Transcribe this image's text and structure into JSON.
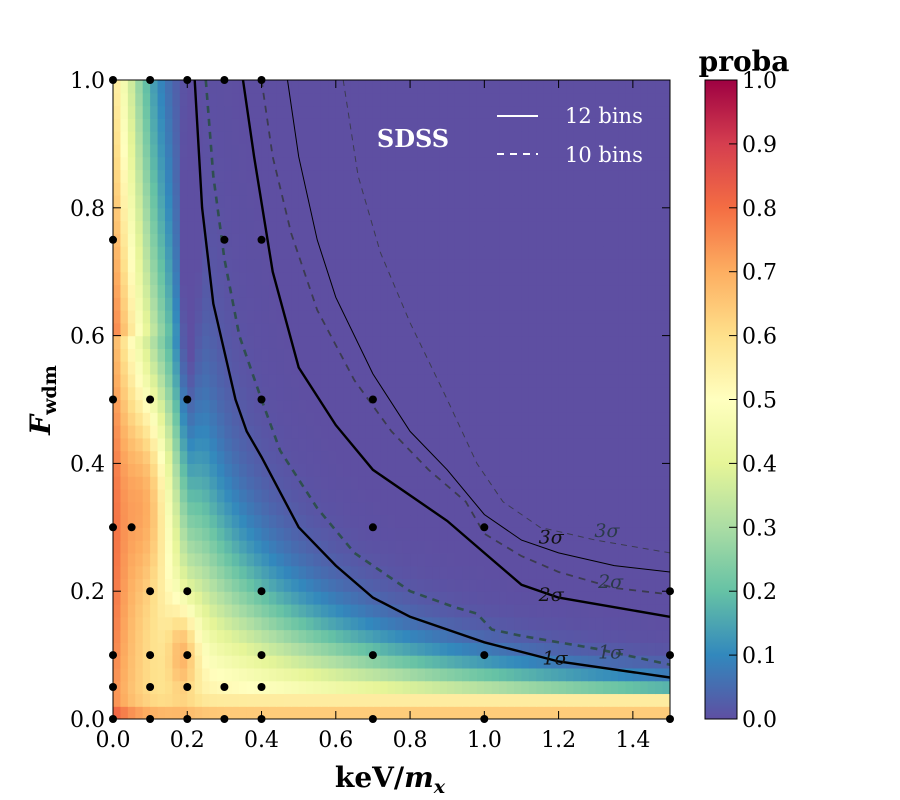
{
  "chart_data": {
    "type": "heatmap",
    "title": "",
    "xlabel": "keV/m_x",
    "xlabel_parts": {
      "main": "keV/",
      "sym": "m",
      "sub": "x"
    },
    "ylabel": "F_wdm",
    "ylabel_parts": {
      "sym": "F",
      "sub": "wdm"
    },
    "xlim": [
      0.0,
      1.5
    ],
    "ylim": [
      0.0,
      1.0
    ],
    "xticks": [
      "0.0",
      "0.2",
      "0.4",
      "0.6",
      "0.8",
      "1.0",
      "1.2",
      "1.4"
    ],
    "yticks": [
      "0.0",
      "0.2",
      "0.4",
      "0.6",
      "0.8",
      "1.0"
    ],
    "colorbar": {
      "label": "proba",
      "range": [
        0.0,
        1.0
      ],
      "ticks": [
        "0.0",
        "0.1",
        "0.2",
        "0.3",
        "0.4",
        "0.5",
        "0.6",
        "0.7",
        "0.8",
        "0.9",
        "1.0"
      ],
      "colormap": "Spectral_r"
    },
    "annotation": "SDSS",
    "legend": {
      "position": "top-right",
      "entries": [
        {
          "label": "12 bins",
          "style": "solid"
        },
        {
          "label": "10 bins",
          "style": "dashed"
        }
      ]
    },
    "contours": [
      {
        "label": "1σ",
        "bins": 12,
        "style": "solid",
        "points": [
          [
            0.22,
            1.0
          ],
          [
            0.24,
            0.8
          ],
          [
            0.27,
            0.65
          ],
          [
            0.33,
            0.5
          ],
          [
            0.36,
            0.45
          ],
          [
            0.4,
            0.41
          ],
          [
            0.5,
            0.3
          ],
          [
            0.6,
            0.24
          ],
          [
            0.7,
            0.19
          ],
          [
            0.8,
            0.16
          ],
          [
            1.0,
            0.12
          ],
          [
            1.2,
            0.09
          ],
          [
            1.5,
            0.065
          ]
        ]
      },
      {
        "label": "2σ",
        "bins": 12,
        "style": "solid",
        "points": [
          [
            0.35,
            1.0
          ],
          [
            0.38,
            0.88
          ],
          [
            0.43,
            0.7
          ],
          [
            0.5,
            0.55
          ],
          [
            0.6,
            0.46
          ],
          [
            0.7,
            0.39
          ],
          [
            0.8,
            0.35
          ],
          [
            0.9,
            0.31
          ],
          [
            1.0,
            0.26
          ],
          [
            1.1,
            0.21
          ],
          [
            1.2,
            0.19
          ],
          [
            1.35,
            0.175
          ],
          [
            1.5,
            0.16
          ]
        ]
      },
      {
        "label": "3σ",
        "bins": 12,
        "style": "solid",
        "points": [
          [
            0.47,
            1.0
          ],
          [
            0.5,
            0.88
          ],
          [
            0.55,
            0.75
          ],
          [
            0.6,
            0.66
          ],
          [
            0.7,
            0.54
          ],
          [
            0.8,
            0.45
          ],
          [
            0.9,
            0.39
          ],
          [
            1.0,
            0.32
          ],
          [
            1.1,
            0.28
          ],
          [
            1.2,
            0.26
          ],
          [
            1.35,
            0.24
          ],
          [
            1.5,
            0.23
          ]
        ]
      },
      {
        "label": "1σ",
        "bins": 10,
        "style": "dashed",
        "points": [
          [
            0.25,
            1.0
          ],
          [
            0.27,
            0.85
          ],
          [
            0.3,
            0.72
          ],
          [
            0.34,
            0.6
          ],
          [
            0.4,
            0.5
          ],
          [
            0.45,
            0.42
          ],
          [
            0.55,
            0.33
          ],
          [
            0.65,
            0.26
          ],
          [
            0.8,
            0.2
          ],
          [
            0.92,
            0.175
          ],
          [
            0.98,
            0.165
          ],
          [
            1.02,
            0.14
          ],
          [
            1.1,
            0.13
          ],
          [
            1.3,
            0.11
          ],
          [
            1.5,
            0.085
          ]
        ]
      },
      {
        "label": "2σ",
        "bins": 10,
        "style": "dashed",
        "points": [
          [
            0.4,
            1.0
          ],
          [
            0.43,
            0.88
          ],
          [
            0.48,
            0.76
          ],
          [
            0.55,
            0.64
          ],
          [
            0.65,
            0.53
          ],
          [
            0.75,
            0.45
          ],
          [
            0.85,
            0.39
          ],
          [
            0.95,
            0.34
          ],
          [
            1.0,
            0.29
          ],
          [
            1.1,
            0.255
          ],
          [
            1.2,
            0.23
          ],
          [
            1.35,
            0.205
          ],
          [
            1.5,
            0.195
          ]
        ]
      },
      {
        "label": "3σ",
        "bins": 10,
        "style": "dashed",
        "points": [
          [
            0.62,
            1.0
          ],
          [
            0.66,
            0.85
          ],
          [
            0.72,
            0.73
          ],
          [
            0.8,
            0.62
          ],
          [
            0.9,
            0.5
          ],
          [
            0.98,
            0.4
          ],
          [
            1.05,
            0.34
          ],
          [
            1.15,
            0.3
          ],
          [
            1.3,
            0.28
          ],
          [
            1.5,
            0.26
          ]
        ]
      }
    ],
    "contour_label_positions": [
      {
        "text": "3σ",
        "x": 1.18,
        "y": 0.275,
        "style": "solid"
      },
      {
        "text": "2σ",
        "x": 1.18,
        "y": 0.185,
        "style": "solid"
      },
      {
        "text": "1σ",
        "x": 1.19,
        "y": 0.085,
        "style": "solid"
      },
      {
        "text": "3σ",
        "x": 1.33,
        "y": 0.285,
        "style": "dashed"
      },
      {
        "text": "2σ",
        "x": 1.34,
        "y": 0.205,
        "style": "dashed"
      },
      {
        "text": "1σ",
        "x": 1.34,
        "y": 0.095,
        "style": "dashed"
      }
    ],
    "sample_points": [
      [
        0.0,
        1.0
      ],
      [
        0.1,
        1.0
      ],
      [
        0.2,
        1.0
      ],
      [
        0.3,
        1.0
      ],
      [
        0.4,
        1.0
      ],
      [
        0.0,
        0.75
      ],
      [
        0.3,
        0.75
      ],
      [
        0.4,
        0.75
      ],
      [
        0.0,
        0.5
      ],
      [
        0.1,
        0.5
      ],
      [
        0.2,
        0.5
      ],
      [
        0.4,
        0.5
      ],
      [
        0.7,
        0.5
      ],
      [
        0.0,
        0.3
      ],
      [
        0.05,
        0.3
      ],
      [
        0.7,
        0.3
      ],
      [
        1.0,
        0.3
      ],
      [
        0.1,
        0.2
      ],
      [
        0.2,
        0.2
      ],
      [
        0.4,
        0.2
      ],
      [
        1.5,
        0.2
      ],
      [
        0.0,
        0.1
      ],
      [
        0.1,
        0.1
      ],
      [
        0.2,
        0.1
      ],
      [
        0.4,
        0.1
      ],
      [
        0.7,
        0.1
      ],
      [
        1.0,
        0.1
      ],
      [
        1.5,
        0.1
      ],
      [
        0.0,
        0.05
      ],
      [
        0.1,
        0.05
      ],
      [
        0.2,
        0.05
      ],
      [
        0.3,
        0.05
      ],
      [
        0.4,
        0.05
      ],
      [
        0.0,
        0.0
      ],
      [
        0.1,
        0.0
      ],
      [
        0.2,
        0.0
      ],
      [
        0.3,
        0.0
      ],
      [
        0.4,
        0.0
      ],
      [
        0.7,
        0.0
      ],
      [
        1.0,
        0.0
      ],
      [
        1.5,
        0.0
      ]
    ]
  }
}
